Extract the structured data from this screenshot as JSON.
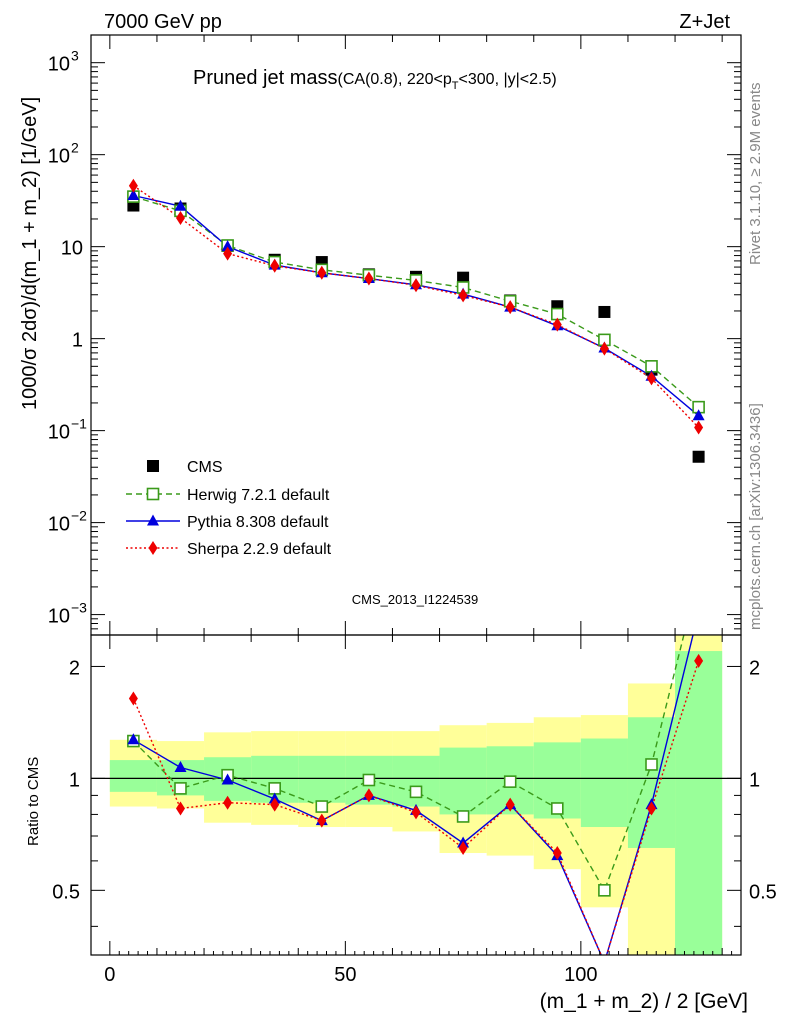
{
  "header": {
    "left": "7000 GeV pp",
    "right": "Z+Jet"
  },
  "title": {
    "main": "Pruned jet mass",
    "sub": "(CA(0.8), 220<p",
    "sub_T": "T",
    "sub2": "<300, |y|<2.5)"
  },
  "side_labels": {
    "rivet": "Rivet 3.1.10, ≥ 2.9M events",
    "mcplots": "mcplots.cern.ch [arXiv:1306.3436]"
  },
  "watermark": "CMS_2013_I1224539",
  "colors": {
    "cms": "#000000",
    "herwig": "#3a9a1a",
    "pythia": "#0000dd",
    "sherpa": "#ee0000",
    "band_outer": "#ffff99",
    "band_inner": "#99ff99"
  },
  "chart_data": [
    {
      "type": "scatter",
      "panel": "main",
      "ylabel": "1000/σ 2dσ)/d(m_1 + m_2) [1/GeV]",
      "yscale": "log",
      "ylim": [
        0.0006,
        2000
      ],
      "xlim": [
        -4,
        134
      ],
      "yticks": [
        {
          "v": 0.001,
          "base": "10",
          "exp": "−3"
        },
        {
          "v": 0.01,
          "base": "10",
          "exp": "−2"
        },
        {
          "v": 0.1,
          "base": "10",
          "exp": "−1"
        },
        {
          "v": 1,
          "base": "1",
          "exp": ""
        },
        {
          "v": 10,
          "base": "10",
          "exp": ""
        },
        {
          "v": 100,
          "base": "10",
          "exp": "2"
        },
        {
          "v": 1000,
          "base": "10",
          "exp": "3"
        }
      ],
      "x": [
        5,
        15,
        25,
        35,
        45,
        55,
        65,
        75,
        85,
        95,
        105,
        115,
        125
      ],
      "series": [
        {
          "name": "CMS",
          "key": "cms",
          "marker": "square",
          "values": [
            28,
            26,
            10.2,
            7.2,
            6.8,
            5.0,
            4.7,
            4.6,
            2.6,
            2.25,
            1.95,
            0.46,
            0.052
          ]
        },
        {
          "name": "Herwig 7.2.1 default",
          "key": "herwig",
          "marker": "open-square",
          "line": "dashed",
          "values": [
            35,
            24.5,
            10.3,
            6.8,
            5.6,
            4.9,
            4.3,
            3.6,
            2.55,
            1.85,
            0.97,
            0.5,
            0.18
          ]
        },
        {
          "name": "Pythia 8.308 default",
          "key": "pythia",
          "marker": "triangle",
          "line": "solid",
          "values": [
            36,
            27.5,
            10.0,
            6.3,
            5.2,
            4.5,
            3.85,
            3.05,
            2.2,
            1.38,
            0.79,
            0.39,
            0.145
          ]
        },
        {
          "name": "Sherpa 2.2.9 default",
          "key": "sherpa",
          "marker": "diamond",
          "line": "dotted",
          "values": [
            46,
            20.5,
            8.4,
            6.2,
            5.2,
            4.5,
            3.8,
            2.95,
            2.2,
            1.42,
            0.78,
            0.37,
            0.108
          ]
        }
      ]
    },
    {
      "type": "line",
      "panel": "ratio",
      "ylabel": "Ratio to CMS",
      "xlabel": "(m_1 + m_2) / 2 [GeV]",
      "yscale": "log",
      "ylim": [
        0.335,
        2.43
      ],
      "xlim": [
        -4,
        134
      ],
      "xticks": [
        0,
        50,
        100
      ],
      "yticks": [
        0.5,
        1,
        2
      ],
      "x": [
        5,
        15,
        25,
        35,
        45,
        55,
        65,
        75,
        85,
        95,
        105,
        115,
        125
      ],
      "reference": 1,
      "bands": {
        "edges": [
          0,
          10,
          20,
          30,
          40,
          50,
          60,
          70,
          80,
          90,
          100,
          110,
          120,
          130
        ],
        "outer_lo": [
          0.84,
          0.83,
          0.76,
          0.75,
          0.74,
          0.74,
          0.72,
          0.63,
          0.62,
          0.57,
          0.45,
          0.33,
          0.33
        ],
        "outer_hi": [
          1.27,
          1.26,
          1.33,
          1.34,
          1.34,
          1.34,
          1.34,
          1.39,
          1.41,
          1.46,
          1.48,
          1.8,
          2.45
        ],
        "inner_lo": [
          0.92,
          0.9,
          0.87,
          0.86,
          0.86,
          0.85,
          0.84,
          0.8,
          0.8,
          0.78,
          0.74,
          0.65,
          0.33
        ],
        "inner_hi": [
          1.12,
          1.12,
          1.14,
          1.15,
          1.15,
          1.15,
          1.15,
          1.21,
          1.22,
          1.25,
          1.28,
          1.46,
          2.2
        ]
      },
      "series": [
        {
          "name": "Herwig 7.2.1 default",
          "key": "herwig",
          "marker": "open-square",
          "line": "dashed",
          "values": [
            1.26,
            0.94,
            1.02,
            0.94,
            0.84,
            0.99,
            0.92,
            0.79,
            0.98,
            0.83,
            0.5,
            1.09,
            3.5
          ]
        },
        {
          "name": "Pythia 8.308 default",
          "key": "pythia",
          "marker": "triangle",
          "line": "solid",
          "values": [
            1.27,
            1.07,
            0.99,
            0.88,
            0.77,
            0.9,
            0.82,
            0.67,
            0.85,
            0.62,
            0.32,
            0.85,
            2.8
          ]
        },
        {
          "name": "Sherpa 2.2.9 default",
          "key": "sherpa",
          "marker": "diamond",
          "line": "dotted",
          "values": [
            1.64,
            0.83,
            0.86,
            0.85,
            0.77,
            0.9,
            0.81,
            0.65,
            0.85,
            0.63,
            0.32,
            0.83,
            2.07
          ]
        }
      ]
    }
  ]
}
